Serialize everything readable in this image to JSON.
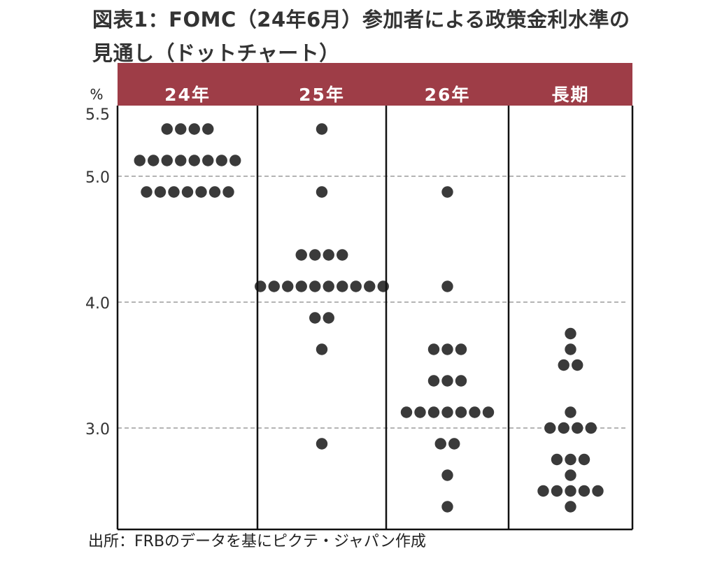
{
  "title": {
    "line1": "図表1：FOMC（24年6月）参加者による政策金利水準の",
    "line2": "見通し（ドットチャート）"
  },
  "source": "出所：FRBのデータを基にピクテ・ジャパン作成",
  "colors": {
    "header_bg": "#9e3d47",
    "header_text": "#ffffff",
    "dot": "#3a3a3a",
    "grid": "#888888",
    "frame": "#111111"
  },
  "chart_data": {
    "type": "scatter",
    "unit": "%",
    "ylim": [
      2.25,
      5.5
    ],
    "yticks": [
      "5.5",
      "5.0",
      "4.0",
      "3.0"
    ],
    "grid": true,
    "columns": [
      {
        "label": "24年",
        "dots": [
          {
            "value": 5.375,
            "count": 4
          },
          {
            "value": 5.125,
            "count": 8
          },
          {
            "value": 4.875,
            "count": 7
          }
        ]
      },
      {
        "label": "25年",
        "dots": [
          {
            "value": 5.375,
            "count": 1
          },
          {
            "value": 4.875,
            "count": 1
          },
          {
            "value": 4.375,
            "count": 4
          },
          {
            "value": 4.125,
            "count": 10
          },
          {
            "value": 3.875,
            "count": 2
          },
          {
            "value": 3.625,
            "count": 1
          },
          {
            "value": 2.875,
            "count": 1
          }
        ]
      },
      {
        "label": "26年",
        "dots": [
          {
            "value": 4.875,
            "count": 1
          },
          {
            "value": 4.125,
            "count": 1
          },
          {
            "value": 3.625,
            "count": 3
          },
          {
            "value": 3.375,
            "count": 3
          },
          {
            "value": 3.125,
            "count": 7
          },
          {
            "value": 2.875,
            "count": 2
          },
          {
            "value": 2.625,
            "count": 1
          },
          {
            "value": 2.375,
            "count": 1
          }
        ]
      },
      {
        "label": "長期",
        "dots": [
          {
            "value": 3.75,
            "count": 1
          },
          {
            "value": 3.625,
            "count": 1
          },
          {
            "value": 3.5,
            "count": 2
          },
          {
            "value": 3.125,
            "count": 1
          },
          {
            "value": 3.0,
            "count": 4
          },
          {
            "value": 2.75,
            "count": 3
          },
          {
            "value": 2.625,
            "count": 1
          },
          {
            "value": 2.5,
            "count": 5
          },
          {
            "value": 2.375,
            "count": 1
          }
        ]
      }
    ]
  }
}
